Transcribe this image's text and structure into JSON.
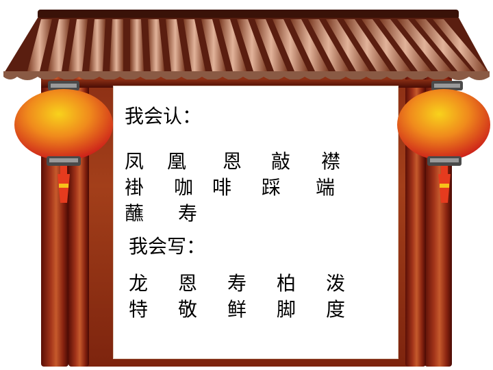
{
  "read_section": {
    "heading": "我会认：",
    "rows": [
      [
        "凤",
        "凰",
        "恩",
        "敲",
        "襟"
      ],
      [
        "褂",
        "咖",
        "啡",
        "踩",
        "端"
      ],
      [
        "蘸",
        "寿"
      ]
    ]
  },
  "write_section": {
    "heading": "我会写：",
    "rows": [
      [
        "龙",
        "恩",
        "寿",
        "柏",
        "泼"
      ],
      [
        "特",
        "敬",
        "鲜",
        "脚",
        "度"
      ]
    ]
  },
  "colors": {
    "roof_tile": "#c98a6a",
    "roof_dark": "#5a1e10",
    "pillar": "#a3341a",
    "lantern_top": "#f6c21a",
    "lantern_bottom": "#d81e1e",
    "tassel": "#e63b1e"
  }
}
